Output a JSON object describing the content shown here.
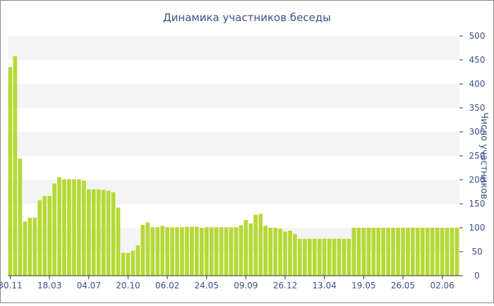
{
  "chart_data": {
    "type": "bar",
    "title": "Динамика участников беседы",
    "ylabel": "Число участников",
    "xlabel": "",
    "ylim": [
      0,
      500
    ],
    "y_ticks": [
      0,
      50,
      100,
      150,
      200,
      250,
      300,
      350,
      400,
      450,
      500
    ],
    "x_tick_labels": [
      {
        "index": 0,
        "label": "30.11"
      },
      {
        "index": 8,
        "label": "18.03"
      },
      {
        "index": 16,
        "label": "04.07"
      },
      {
        "index": 24,
        "label": "20.10"
      },
      {
        "index": 32,
        "label": "06.02"
      },
      {
        "index": 40,
        "label": "24.05"
      },
      {
        "index": 48,
        "label": "09.09"
      },
      {
        "index": 56,
        "label": "26.12"
      },
      {
        "index": 64,
        "label": "13.04"
      },
      {
        "index": 72,
        "label": "19.05"
      },
      {
        "index": 80,
        "label": "26.05"
      },
      {
        "index": 88,
        "label": "02.06"
      }
    ],
    "values": [
      435,
      458,
      244,
      113,
      121,
      121,
      157,
      166,
      166,
      192,
      205,
      201,
      201,
      201,
      201,
      198,
      180,
      180,
      180,
      179,
      177,
      174,
      142,
      48,
      48,
      52,
      63,
      106,
      111,
      101,
      101,
      104,
      101,
      101,
      101,
      101,
      102,
      102,
      102,
      100,
      101,
      101,
      101,
      101,
      101,
      101,
      101,
      105,
      116,
      109,
      127,
      129,
      104,
      100,
      100,
      98,
      92,
      94,
      87,
      77,
      77,
      77,
      77,
      77,
      77,
      77,
      77,
      77,
      77,
      77,
      100,
      100,
      100,
      100,
      100,
      100,
      100,
      100,
      100,
      100,
      100,
      100,
      100,
      100,
      100,
      100,
      100,
      100,
      100,
      100,
      100,
      100
    ],
    "grid": true,
    "colors": {
      "bar": "#b5d936",
      "band": "#f4f4f4",
      "text": "#3d4f8a"
    }
  }
}
